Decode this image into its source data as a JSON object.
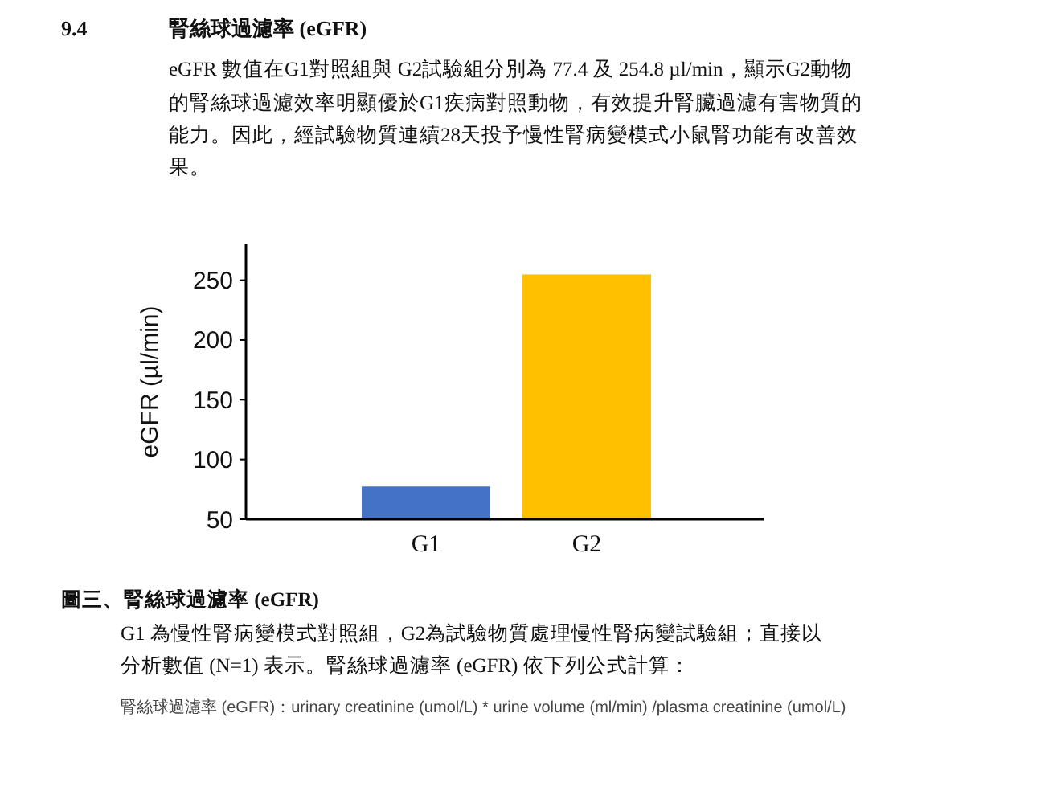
{
  "chart_data": {
    "type": "bar",
    "title": "腎絲球過濾率 (eGFR)",
    "ylabel": "eGFR (µl/min)",
    "categories": [
      "G1",
      "G2"
    ],
    "values": [
      77.4,
      254.8
    ],
    "colors": [
      "#4472c4",
      "#ffc000"
    ],
    "ylim": [
      50,
      280
    ],
    "yticks": [
      50,
      100,
      150,
      200,
      250
    ],
    "grid": false,
    "annotations": [
      "9.4",
      "eGFR 數值在G1對照組與 G2試驗組分別為 77.4 及 254.8 µl/min，顯示G2動物",
      "的腎絲球過濾效率明顯優於G1疾病對照動物，有效提升腎臟過濾有害物質的",
      "能力。因此，經試驗物質連續28天投予慢性腎病變模式小鼠腎功能有改善效",
      "果。",
      "圖三、腎絲球過濾率 (eGFR)",
      "G1 為慢性腎病變模式對照組，G2為試驗物質處理慢性腎病變試驗組；直接以",
      "分析數值 (N=1) 表示。腎絲球過濾率 (eGFR) 依下列公式計算：",
      "腎絲球過濾率 (eGFR)：urinary creatinine (umol/L) * urine volume (ml/min)  /plasma creatinine (umol/L)"
    ]
  }
}
